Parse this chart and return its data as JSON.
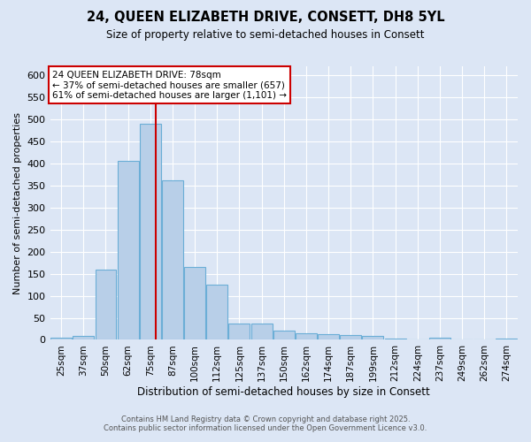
{
  "title_line1": "24, QUEEN ELIZABETH DRIVE, CONSETT, DH8 5YL",
  "title_line2": "Size of property relative to semi-detached houses in Consett",
  "xlabel": "Distribution of semi-detached houses by size in Consett",
  "ylabel": "Number of semi-detached properties",
  "footnote1": "Contains HM Land Registry data © Crown copyright and database right 2025.",
  "footnote2": "Contains public sector information licensed under the Open Government Licence v3.0.",
  "annotation_line1": "24 QUEEN ELIZABETH DRIVE: 78sqm",
  "annotation_line2": "← 37% of semi-detached houses are smaller (657)",
  "annotation_line3": "61% of semi-detached houses are larger (1,101) →",
  "property_size_idx": 4,
  "bar_color": "#b8cfe8",
  "bar_edge_color": "#6baed6",
  "bg_color": "#dce6f5",
  "grid_color": "#ffffff",
  "annotation_box_color": "#ffffff",
  "annotation_box_edge": "#cc0000",
  "redline_color": "#cc0000",
  "bin_labels": [
    "25sqm",
    "37sqm",
    "50sqm",
    "62sqm",
    "75sqm",
    "87sqm",
    "100sqm",
    "112sqm",
    "125sqm",
    "137sqm",
    "150sqm",
    "162sqm",
    "174sqm",
    "187sqm",
    "199sqm",
    "212sqm",
    "224sqm",
    "237sqm",
    "249sqm",
    "262sqm",
    "274sqm"
  ],
  "bar_heights": [
    5,
    8,
    160,
    405,
    490,
    362,
    165,
    125,
    37,
    37,
    20,
    15,
    13,
    10,
    8,
    3,
    1,
    5,
    1,
    1,
    3
  ],
  "ylim": [
    0,
    620
  ],
  "yticks": [
    0,
    50,
    100,
    150,
    200,
    250,
    300,
    350,
    400,
    450,
    500,
    550,
    600
  ]
}
